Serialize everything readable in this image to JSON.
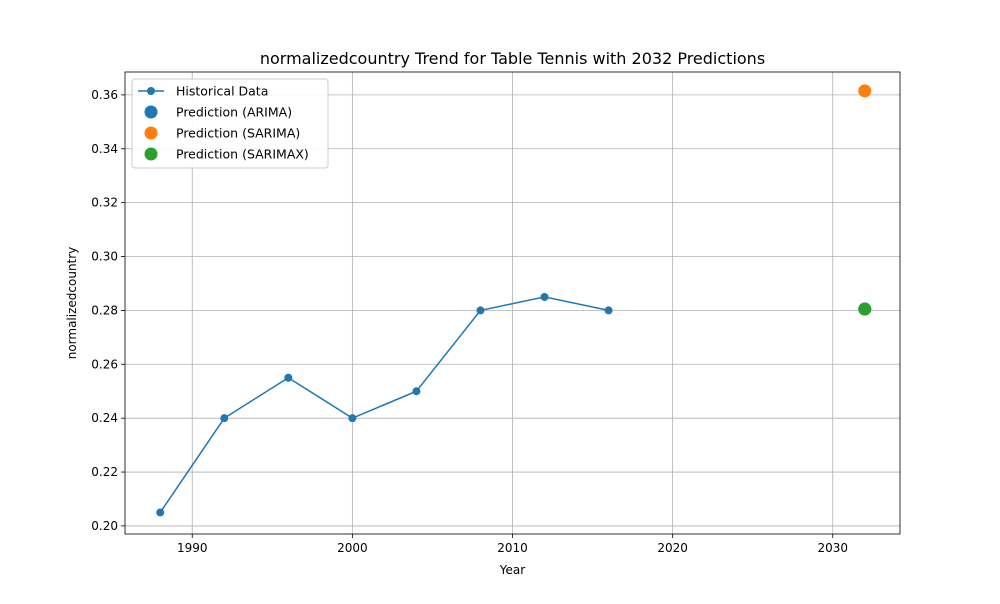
{
  "chart_data": {
    "type": "line",
    "title": "normalizedcountry Trend for Table Tennis with 2032 Predictions",
    "xlabel": "Year",
    "ylabel": "normalizedcountry",
    "xlim": [
      1985.8,
      2034.2
    ],
    "ylim": [
      0.197,
      0.3685
    ],
    "xticks": [
      1990,
      2000,
      2010,
      2020,
      2030
    ],
    "yticks": [
      0.2,
      0.22,
      0.24,
      0.26,
      0.28,
      0.3,
      0.32,
      0.34,
      0.36
    ],
    "grid": true,
    "legend_position": "upper-left",
    "series": [
      {
        "name": "Historical Data",
        "kind": "line-marker",
        "color": "#1f77b4",
        "x": [
          1988,
          1992,
          1996,
          2000,
          2004,
          2008,
          2012,
          2016
        ],
        "y": [
          0.205,
          0.24,
          0.255,
          0.24,
          0.25,
          0.28,
          0.285,
          0.28
        ]
      },
      {
        "name": "Prediction (ARIMA)",
        "kind": "scatter",
        "color": "#1f77b4",
        "x": [
          2032
        ],
        "y": [
          0.2805
        ]
      },
      {
        "name": "Prediction (SARIMA)",
        "kind": "scatter",
        "color": "#ff7f0e",
        "x": [
          2032
        ],
        "y": [
          0.3615
        ]
      },
      {
        "name": "Prediction (SARIMAX)",
        "kind": "scatter",
        "color": "#2ca02c",
        "x": [
          2032
        ],
        "y": [
          0.2805
        ]
      }
    ]
  }
}
